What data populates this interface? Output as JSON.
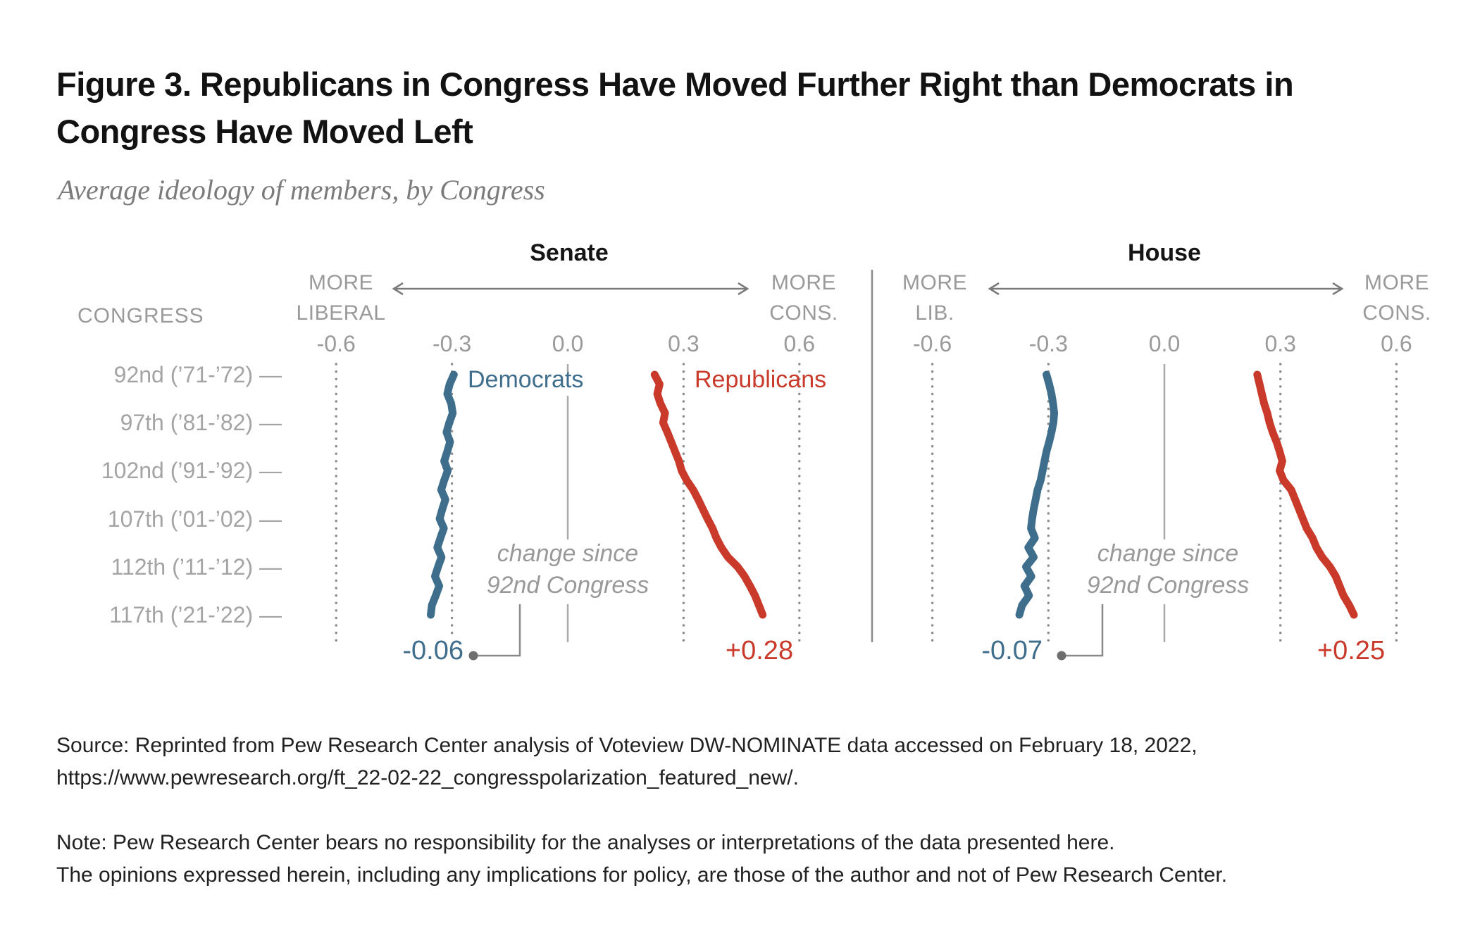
{
  "title": "Figure 3. Republicans in Congress Have Moved Further Right than Democrats in Congress Have Moved Left",
  "subtitle": "Average ideology of members, by Congress",
  "y_axis": {
    "header": "CONGRESS",
    "tick_labels": [
      "92nd (’71-’72)",
      "97th (’81-’82)",
      "102nd (’91-’92)",
      "107th (’01-’02)",
      "112th (’11-’12)",
      "117th (’21-’22)"
    ],
    "tick_dash": "—"
  },
  "colors": {
    "democrat": "#3e6e8c",
    "republican": "#c93a2b",
    "grid_gray": "#8c8c8c",
    "zero_line_gray": "#a9a9a9",
    "text_gray": "#9a9a9a",
    "annotation_dot_gray": "#6e6e6e"
  },
  "chart_data": [
    {
      "type": "line",
      "title": "Senate",
      "direction_labels": {
        "left": [
          "MORE",
          "LIBERAL"
        ],
        "right": [
          "MORE",
          "CONS."
        ]
      },
      "x_ticks": [
        "-0.6",
        "-0.3",
        "0.0",
        "0.3",
        "0.6"
      ],
      "xlim": [
        -0.75,
        0.75
      ],
      "congress_start": 92,
      "congress_end": 117,
      "change_annotation": {
        "lines": [
          "change since",
          "92nd Congress"
        ]
      },
      "series": [
        {
          "name": "Democrats",
          "color": "#3e6e8c",
          "change_label": "-0.06",
          "values": [
            -0.295,
            -0.306,
            -0.312,
            -0.302,
            -0.298,
            -0.307,
            -0.314,
            -0.305,
            -0.312,
            -0.32,
            -0.311,
            -0.32,
            -0.328,
            -0.317,
            -0.325,
            -0.332,
            -0.321,
            -0.33,
            -0.338,
            -0.327,
            -0.336,
            -0.344,
            -0.333,
            -0.342,
            -0.352,
            -0.355
          ]
        },
        {
          "name": "Republicans",
          "color": "#c93a2b",
          "change_label": "+0.28",
          "values": [
            0.225,
            0.238,
            0.232,
            0.24,
            0.252,
            0.247,
            0.258,
            0.268,
            0.278,
            0.288,
            0.295,
            0.308,
            0.325,
            0.338,
            0.35,
            0.362,
            0.375,
            0.385,
            0.398,
            0.415,
            0.44,
            0.458,
            0.472,
            0.485,
            0.495,
            0.505
          ]
        }
      ]
    },
    {
      "type": "line",
      "title": "House",
      "direction_labels": {
        "left": [
          "MORE",
          "LIB."
        ],
        "right": [
          "MORE",
          "CONS."
        ]
      },
      "x_ticks": [
        "-0.6",
        "-0.3",
        "0.0",
        "0.3",
        "0.6"
      ],
      "xlim": [
        -0.75,
        0.75
      ],
      "congress_start": 92,
      "congress_end": 117,
      "change_annotation": {
        "lines": [
          "change since",
          "92nd Congress"
        ]
      },
      "series": [
        {
          "name": "Democrats",
          "color": "#3e6e8c",
          "change_label": "-0.07",
          "values": [
            -0.305,
            -0.298,
            -0.292,
            -0.288,
            -0.285,
            -0.287,
            -0.292,
            -0.298,
            -0.305,
            -0.31,
            -0.315,
            -0.32,
            -0.328,
            -0.333,
            -0.338,
            -0.342,
            -0.345,
            -0.335,
            -0.352,
            -0.338,
            -0.358,
            -0.344,
            -0.362,
            -0.35,
            -0.368,
            -0.375
          ]
        },
        {
          "name": "Republicans",
          "color": "#c93a2b",
          "change_label": "+0.25",
          "values": [
            0.24,
            0.246,
            0.252,
            0.258,
            0.266,
            0.272,
            0.28,
            0.29,
            0.298,
            0.305,
            0.298,
            0.308,
            0.328,
            0.338,
            0.348,
            0.358,
            0.368,
            0.383,
            0.393,
            0.408,
            0.428,
            0.443,
            0.453,
            0.463,
            0.478,
            0.49
          ]
        }
      ]
    }
  ],
  "footer": {
    "source_lines": [
      "Source: Reprinted from Pew Research Center analysis of Voteview DW-NOMINATE data accessed on February 18, 2022,",
      "https://www.pewresearch.org/ft_22-02-22_congresspolarization_featured_new/."
    ],
    "note_lines": [
      "Note: Pew Research Center bears no responsibility for the analyses or interpretations of the data presented here.",
      "The opinions expressed herein, including any implications for policy, are those of the author and not of Pew Research Center."
    ]
  }
}
